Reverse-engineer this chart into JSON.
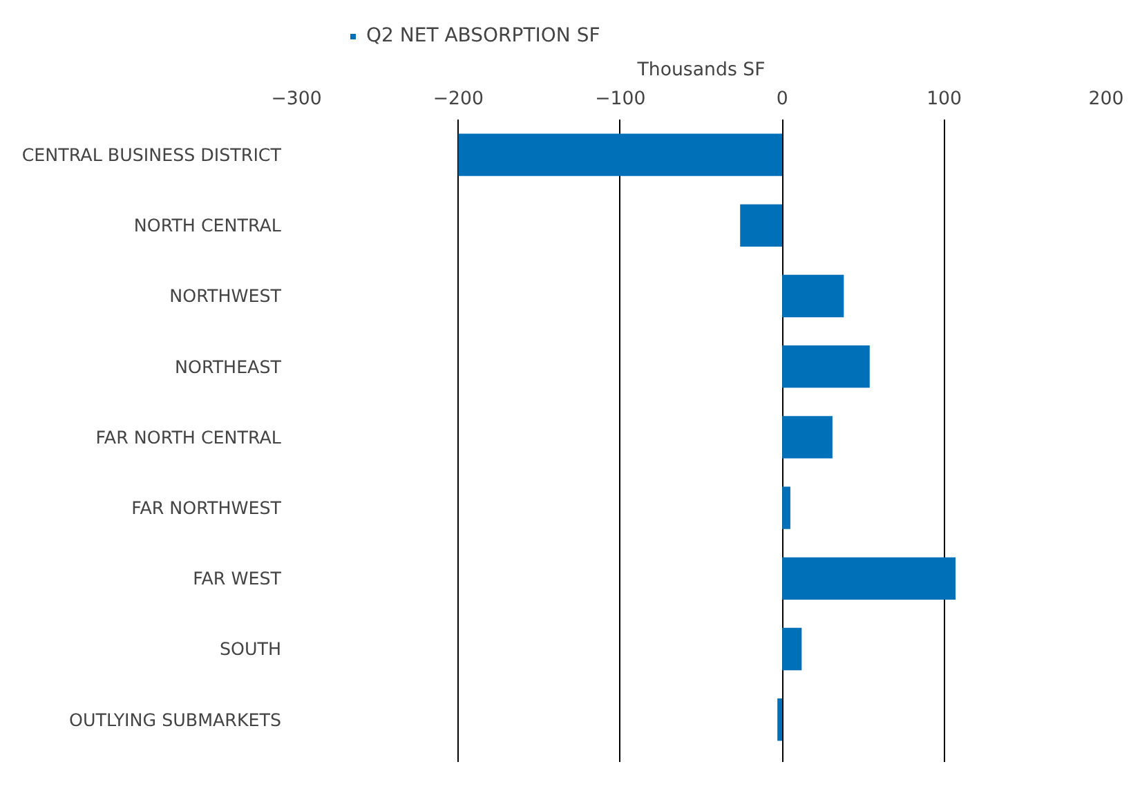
{
  "chart_data": {
    "type": "bar",
    "orientation": "horizontal",
    "xlabel": "Thousands SF",
    "categories": [
      "CENTRAL BUSINESS DISTRICT",
      "NORTH CENTRAL",
      "NORTHWEST",
      "NORTHEAST",
      "FAR NORTH CENTRAL",
      "FAR NORTHWEST",
      "FAR WEST",
      "SOUTH",
      "OUTLYING SUBMARKETS"
    ],
    "series": [
      {
        "name": "Q2 NET ABSORPTION SF",
        "color": "#0070b8",
        "values": [
          -200,
          -26,
          38,
          54,
          31,
          5,
          107,
          12,
          -3
        ]
      }
    ],
    "xlim": [
      -300,
      200
    ],
    "xticks": [
      -300,
      -200,
      -100,
      0,
      100,
      200
    ],
    "grid": "x",
    "legend": "top left"
  }
}
